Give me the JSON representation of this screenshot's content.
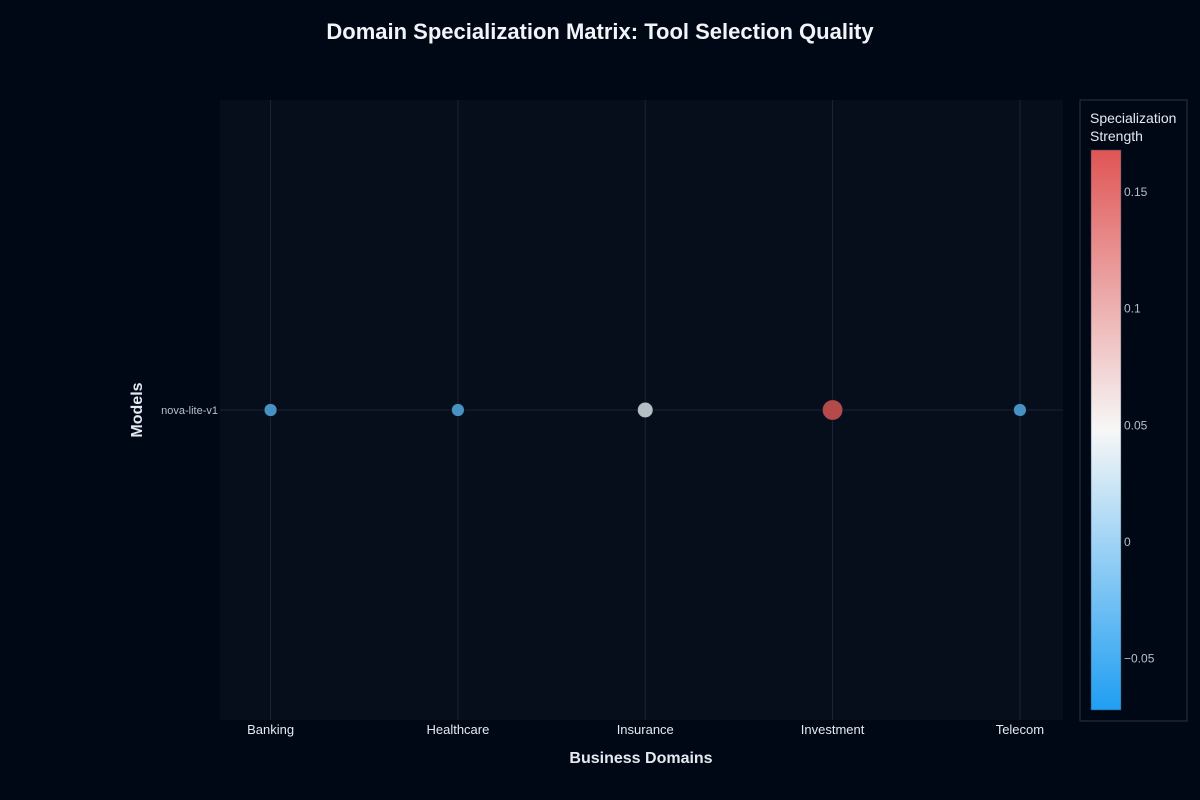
{
  "chart_data": {
    "type": "scatter",
    "title": "Domain Specialization Matrix: Tool Selection Quality",
    "xlabel": "Business Domains",
    "ylabel": "Models",
    "categories": [
      "Banking",
      "Healthcare",
      "Insurance",
      "Investment",
      "Telecom"
    ],
    "models": [
      "nova-lite-v1"
    ],
    "points": [
      {
        "model": "nova-lite-v1",
        "domain": "Banking",
        "value": -0.04
      },
      {
        "model": "nova-lite-v1",
        "domain": "Healthcare",
        "value": -0.04
      },
      {
        "model": "nova-lite-v1",
        "domain": "Insurance",
        "value": 0.035
      },
      {
        "model": "nova-lite-v1",
        "domain": "Investment",
        "value": 0.163
      },
      {
        "model": "nova-lite-v1",
        "domain": "Telecom",
        "value": -0.04
      }
    ],
    "colorbar": {
      "title_lines": [
        "Specialization",
        "Strength"
      ],
      "range": [
        -0.072,
        0.168
      ],
      "ticks": [
        -0.05,
        0,
        0.05,
        0.1,
        0.15
      ],
      "tick_labels": [
        "−0.05",
        "0",
        "0.05",
        "0.1",
        "0.15"
      ],
      "colors": {
        "low": "#1f9ef2",
        "mid": "#f7f7f7",
        "high": "#e05555"
      }
    },
    "grid": true,
    "colors": {
      "background": "#000816",
      "plot_background": "#060d1b",
      "gridline": "#1c2536"
    }
  }
}
